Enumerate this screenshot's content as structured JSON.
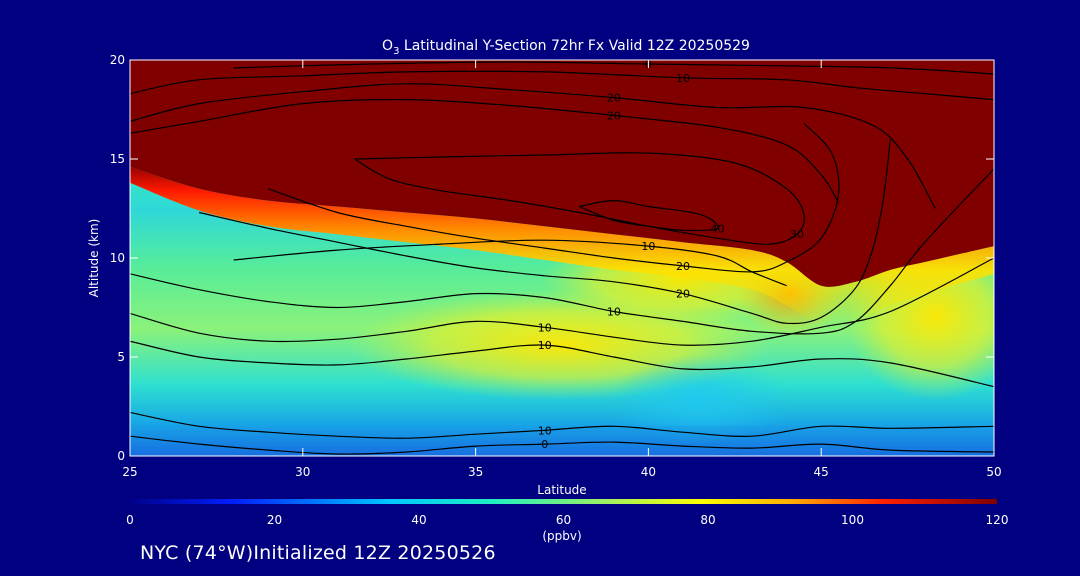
{
  "chart_data": {
    "type": "heatmap",
    "title_main": "O",
    "title_sub": "3",
    "title_rest": " Latitudinal Y-Section 72hr  Fx Valid 12Z 20250529",
    "xlabel": "Latitude",
    "ylabel": "Altitude (km)",
    "xlim": [
      25,
      50
    ],
    "ylim": [
      0,
      20
    ],
    "x_ticks": [
      "25",
      "30",
      "35",
      "40",
      "45",
      "50"
    ],
    "y_ticks": [
      "0",
      "5",
      "10",
      "15",
      "20"
    ],
    "colorbar": {
      "unit": "(ppbv)",
      "range": [
        0,
        120
      ],
      "ticks": [
        "0",
        "20",
        "40",
        "60",
        "80",
        "100",
        "120"
      ]
    },
    "contour_levels": [
      {
        "level": 0,
        "label": "0",
        "points": [
          [
            25,
            1.0
          ],
          [
            27,
            0.6
          ],
          [
            29,
            0.3
          ],
          [
            31,
            0.1
          ],
          [
            33,
            0.2
          ],
          [
            35,
            0.5
          ],
          [
            37,
            0.6
          ],
          [
            39,
            0.7
          ],
          [
            41,
            0.5
          ],
          [
            43,
            0.4
          ],
          [
            45,
            0.6
          ],
          [
            47,
            0.3
          ],
          [
            50,
            0.2
          ]
        ]
      },
      {
        "level": 10,
        "label": "10",
        "points": [
          [
            25,
            2.2
          ],
          [
            27,
            1.5
          ],
          [
            29,
            1.2
          ],
          [
            31,
            1.0
          ],
          [
            33,
            0.9
          ],
          [
            35,
            1.1
          ],
          [
            37,
            1.3
          ],
          [
            39,
            1.5
          ],
          [
            41,
            1.2
          ],
          [
            43,
            1.0
          ],
          [
            45,
            1.5
          ],
          [
            47,
            1.4
          ],
          [
            50,
            1.5
          ]
        ]
      },
      {
        "level": 10,
        "label": "10",
        "points": [
          [
            25,
            5.8
          ],
          [
            27,
            5.0
          ],
          [
            29,
            4.7
          ],
          [
            31,
            4.6
          ],
          [
            33,
            4.9
          ],
          [
            35,
            5.3
          ],
          [
            37,
            5.6
          ],
          [
            39,
            5.0
          ],
          [
            41,
            4.4
          ],
          [
            43,
            4.5
          ],
          [
            45,
            4.9
          ],
          [
            47,
            4.7
          ],
          [
            50,
            3.5
          ]
        ]
      },
      {
        "level": 10,
        "label": "10",
        "points": [
          [
            25,
            7.2
          ],
          [
            27,
            6.2
          ],
          [
            29,
            5.8
          ],
          [
            31,
            5.9
          ],
          [
            33,
            6.3
          ],
          [
            35,
            6.8
          ],
          [
            37,
            6.5
          ],
          [
            39,
            6.0
          ],
          [
            41,
            5.6
          ],
          [
            43,
            5.8
          ],
          [
            45,
            6.5
          ],
          [
            47,
            7.3
          ],
          [
            50,
            10.0
          ]
        ]
      },
      {
        "level": 10,
        "label": "10",
        "points": [
          [
            25,
            9.2
          ],
          [
            27,
            8.4
          ],
          [
            29,
            7.8
          ],
          [
            31,
            7.5
          ],
          [
            33,
            7.8
          ],
          [
            35,
            8.2
          ],
          [
            37,
            8.0
          ],
          [
            39,
            7.3
          ],
          [
            41,
            6.8
          ],
          [
            43,
            6.3
          ],
          [
            45,
            6.2
          ],
          [
            46,
            6.8
          ],
          [
            47,
            8.6
          ],
          [
            48,
            10.8
          ],
          [
            50,
            14.5
          ]
        ]
      },
      {
        "level": 20,
        "label": "20",
        "points": [
          [
            27,
            12.3
          ],
          [
            29,
            11.5
          ],
          [
            31,
            10.8
          ],
          [
            33,
            10.1
          ],
          [
            35,
            9.5
          ],
          [
            37,
            9.1
          ],
          [
            39,
            8.8
          ],
          [
            41,
            8.2
          ],
          [
            43,
            7.2
          ],
          [
            44,
            6.7
          ],
          [
            45,
            7.0
          ],
          [
            46,
            8.5
          ],
          [
            46.5,
            10.5
          ],
          [
            46.8,
            13.0
          ],
          [
            47,
            16.0
          ]
        ]
      },
      {
        "level": 20,
        "label": "20",
        "points": [
          [
            29,
            13.5
          ],
          [
            31,
            12.3
          ],
          [
            33,
            11.6
          ],
          [
            35,
            11.0
          ],
          [
            37,
            10.5
          ],
          [
            39,
            10.0
          ],
          [
            41,
            9.6
          ],
          [
            43,
            9.3
          ],
          [
            44,
            9.8
          ],
          [
            45,
            11.0
          ],
          [
            45.5,
            13.2
          ],
          [
            45.3,
            15.3
          ],
          [
            44.5,
            16.8
          ]
        ]
      },
      {
        "level": 30,
        "label": "30",
        "points": [
          [
            31.5,
            15.0
          ],
          [
            32.5,
            14.0
          ],
          [
            34,
            13.4
          ],
          [
            36,
            12.9
          ],
          [
            38,
            12.3
          ],
          [
            40,
            11.6
          ],
          [
            42,
            11.0
          ],
          [
            43.5,
            10.7
          ],
          [
            44.3,
            11.2
          ],
          [
            44.5,
            12.2
          ],
          [
            44,
            13.5
          ],
          [
            42.5,
            14.8
          ],
          [
            40,
            15.3
          ],
          [
            37,
            15.2
          ],
          [
            34,
            15.1
          ],
          [
            31.5,
            15.0
          ]
        ]
      },
      {
        "level": 40,
        "label": "40",
        "points": [
          [
            38,
            12.6
          ],
          [
            39,
            11.9
          ],
          [
            40,
            11.6
          ],
          [
            41,
            11.4
          ],
          [
            42,
            11.5
          ],
          [
            41.5,
            12.2
          ],
          [
            40,
            12.6
          ],
          [
            39,
            12.9
          ],
          [
            38,
            12.6
          ]
        ]
      },
      {
        "level": 10,
        "label": "10",
        "points": [
          [
            28,
            9.9
          ],
          [
            31,
            10.4
          ],
          [
            34,
            10.7
          ],
          [
            37,
            10.9
          ],
          [
            40,
            10.6
          ],
          [
            42,
            10.1
          ],
          [
            43,
            9.3
          ],
          [
            44,
            8.6
          ]
        ]
      },
      {
        "level": 20,
        "label": "20",
        "points": [
          [
            25,
            16.3
          ],
          [
            27,
            16.9
          ],
          [
            30,
            17.8
          ],
          [
            33,
            18.0
          ],
          [
            36,
            17.7
          ],
          [
            39,
            17.2
          ],
          [
            42,
            16.6
          ],
          [
            44,
            15.7
          ],
          [
            45,
            14.2
          ],
          [
            45.5,
            12.8
          ]
        ]
      },
      {
        "level": 20,
        "label": "20",
        "points": [
          [
            25,
            16.9
          ],
          [
            27,
            17.8
          ],
          [
            30,
            18.4
          ],
          [
            33,
            18.8
          ],
          [
            36,
            18.5
          ],
          [
            39,
            18.1
          ],
          [
            42,
            17.6
          ],
          [
            44.5,
            17.6
          ],
          [
            46.5,
            16.7
          ],
          [
            47.5,
            15.0
          ],
          [
            48.3,
            12.5
          ]
        ]
      },
      {
        "level": 10,
        "label": "10",
        "points": [
          [
            25,
            18.3
          ],
          [
            27,
            19.0
          ],
          [
            30,
            19.2
          ],
          [
            33,
            19.4
          ],
          [
            37,
            19.4
          ],
          [
            41,
            19.1
          ],
          [
            44,
            19.0
          ],
          [
            46,
            18.6
          ],
          [
            48,
            18.3
          ],
          [
            50,
            18.0
          ]
        ]
      },
      {
        "level": 0,
        "label": "0",
        "points": [
          [
            28,
            19.6
          ],
          [
            32,
            19.8
          ],
          [
            36,
            19.9
          ],
          [
            40,
            19.8
          ],
          [
            44,
            19.7
          ],
          [
            47,
            19.6
          ],
          [
            50,
            19.3
          ]
        ]
      }
    ],
    "contour_label_texts": [
      "10",
      "20",
      "20",
      "30",
      "40",
      "10",
      "10",
      "20",
      "10",
      "10",
      "0",
      "10",
      "0",
      "20",
      "10",
      "0"
    ]
  },
  "footer": {
    "text": "NYC (74°W)Initialized 12Z 20250526"
  },
  "colors": {
    "background": "#000080",
    "axes_frame": "#ffffff",
    "contour": "#000000",
    "stratosphere": "#800000"
  }
}
